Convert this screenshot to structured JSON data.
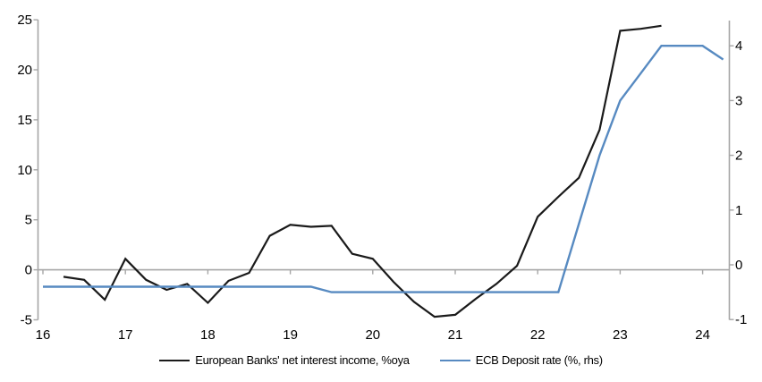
{
  "chart_data": {
    "type": "line",
    "title": "",
    "grid": false,
    "legend_position": "bottom",
    "x_axis": {
      "tick_labels": [
        "16",
        "17",
        "18",
        "19",
        "20",
        "21",
        "22",
        "23",
        "24"
      ],
      "tick_values": [
        16,
        17,
        18,
        19,
        20,
        21,
        22,
        23,
        24
      ],
      "range": [
        15.94,
        24.38
      ],
      "unit": "year (quarterly data)"
    },
    "left_y_axis": {
      "tick_labels": [
        "25",
        "20",
        "15",
        "10",
        "5",
        "0",
        "-5"
      ],
      "tick_values": [
        25,
        20,
        15,
        10,
        5,
        0,
        -5
      ],
      "range": [
        -5,
        25
      ],
      "zero_line": true
    },
    "right_y_axis": {
      "tick_labels": [
        "4",
        "3",
        "2",
        "1",
        "0",
        "-1"
      ],
      "tick_values": [
        4,
        3,
        2,
        1,
        0,
        -1
      ],
      "range": [
        -1,
        4.45
      ]
    },
    "series": [
      {
        "name": "European Banks' net interest income, %oya",
        "axis": "left",
        "color": "#1a1a1a",
        "x": [
          16.25,
          16.5,
          16.75,
          17.0,
          17.25,
          17.5,
          17.75,
          18.0,
          18.25,
          18.5,
          18.75,
          19.0,
          19.25,
          19.5,
          19.75,
          20.0,
          20.25,
          20.5,
          20.75,
          21.0,
          21.25,
          21.5,
          21.75,
          22.0,
          22.25,
          22.5,
          22.75,
          23.0,
          23.25,
          23.5
        ],
        "values": [
          -0.7,
          -1.0,
          -3.0,
          1.1,
          -1.0,
          -2.0,
          -1.4,
          -3.3,
          -1.1,
          -0.3,
          3.4,
          4.5,
          4.3,
          4.4,
          1.6,
          1.1,
          -1.2,
          -3.2,
          -4.7,
          -4.5,
          -2.9,
          -1.4,
          0.4,
          5.3,
          7.3,
          9.2,
          14.0,
          23.9,
          24.1,
          24.4
        ]
      },
      {
        "name": "ECB Deposit rate (%, rhs)",
        "axis": "right",
        "color": "#578ac1",
        "x": [
          16.0,
          16.25,
          16.5,
          16.75,
          17.0,
          17.25,
          17.5,
          17.75,
          18.0,
          18.25,
          18.5,
          18.75,
          19.0,
          19.25,
          19.5,
          19.75,
          20.0,
          20.25,
          20.5,
          20.75,
          21.0,
          21.25,
          21.5,
          21.75,
          22.0,
          22.25,
          22.5,
          22.75,
          23.0,
          23.25,
          23.5,
          23.75,
          24.0,
          24.25
        ],
        "values": [
          -0.4,
          -0.4,
          -0.4,
          -0.4,
          -0.4,
          -0.4,
          -0.4,
          -0.4,
          -0.4,
          -0.4,
          -0.4,
          -0.4,
          -0.4,
          -0.4,
          -0.5,
          -0.5,
          -0.5,
          -0.5,
          -0.5,
          -0.5,
          -0.5,
          -0.5,
          -0.5,
          -0.5,
          -0.5,
          -0.5,
          0.75,
          2.0,
          3.0,
          3.5,
          4.0,
          4.0,
          4.0,
          3.75
        ]
      }
    ]
  },
  "legend": {
    "items": [
      {
        "label": "European Banks' net interest income, %oya",
        "color": "#1a1a1a"
      },
      {
        "label": "ECB Deposit rate (%, rhs)",
        "color": "#578ac1"
      }
    ]
  },
  "colors": {
    "background": "#ffffff",
    "axis": "#a6a6a6",
    "text": "#000000"
  }
}
